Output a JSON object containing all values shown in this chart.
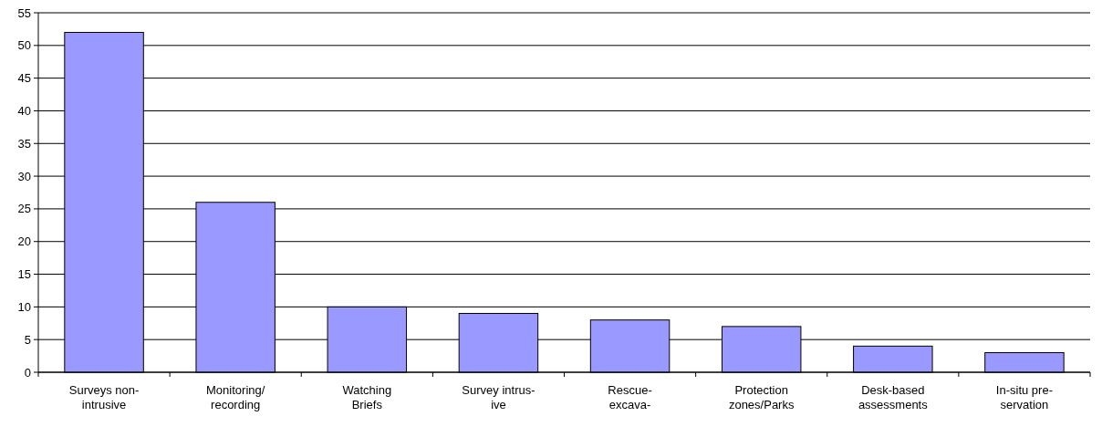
{
  "chart_data": {
    "type": "bar",
    "categories": [
      "Surveys non-\nintrusive",
      "Monitoring/\nrecording",
      "Watching\nBriefs",
      "Survey intrus-\nive",
      "Rescue-\nexcava-",
      "Protection\nzones/Parks",
      "Desk-based\nassessments",
      "In-situ pre-\nservation"
    ],
    "values": [
      52,
      26,
      10,
      9,
      8,
      7,
      4,
      3
    ],
    "color": "#9999ff",
    "ylim": [
      0,
      55
    ],
    "yticks": [
      0,
      5,
      10,
      15,
      20,
      25,
      30,
      35,
      40,
      45,
      50,
      55
    ],
    "grid": "y"
  }
}
